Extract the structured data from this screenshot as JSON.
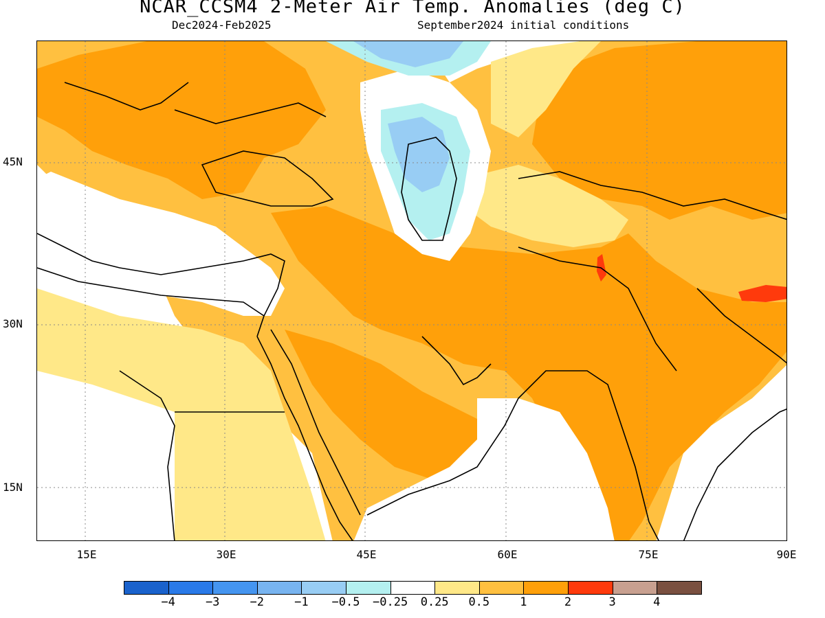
{
  "title": "NCAR_CCSM4 2-Meter Air Temp. Anomalies (deg C)",
  "subtitle_left": "Dec2024-Feb2025",
  "subtitle_right": "September2024 initial conditions",
  "lat_ticks": [
    "45N",
    "30N",
    "15N"
  ],
  "lon_ticks": [
    "15E",
    "30E",
    "45E",
    "60E",
    "75E",
    "90E"
  ],
  "colorbar": {
    "colors": [
      "#1a62cc",
      "#2a7ae8",
      "#4595f0",
      "#78b4f0",
      "#98cdf4",
      "#b4f0f0",
      "#ffffff",
      "#ffe888",
      "#ffc040",
      "#ffa00a",
      "#ff3a0c",
      "#c8a090",
      "#7a5040"
    ],
    "labels": [
      "-4",
      "-3",
      "-2",
      "-1",
      "-0.5",
      "-0.25",
      "0.25",
      "0.5",
      "1",
      "2",
      "3",
      "4"
    ]
  },
  "map_colors": {
    "ocean_land_base": "#ffffff",
    "anom_0_25_0_5": "#ffe888",
    "anom_0_5_1": "#ffc040",
    "anom_1_2": "#ffa00a",
    "anom_2_3": "#ff3a0c",
    "anom_neg_0_25_0_5": "#b4f0f0",
    "anom_neg_0_5_1": "#98cdf4",
    "anom_neg_1_2": "#78b4f0"
  }
}
